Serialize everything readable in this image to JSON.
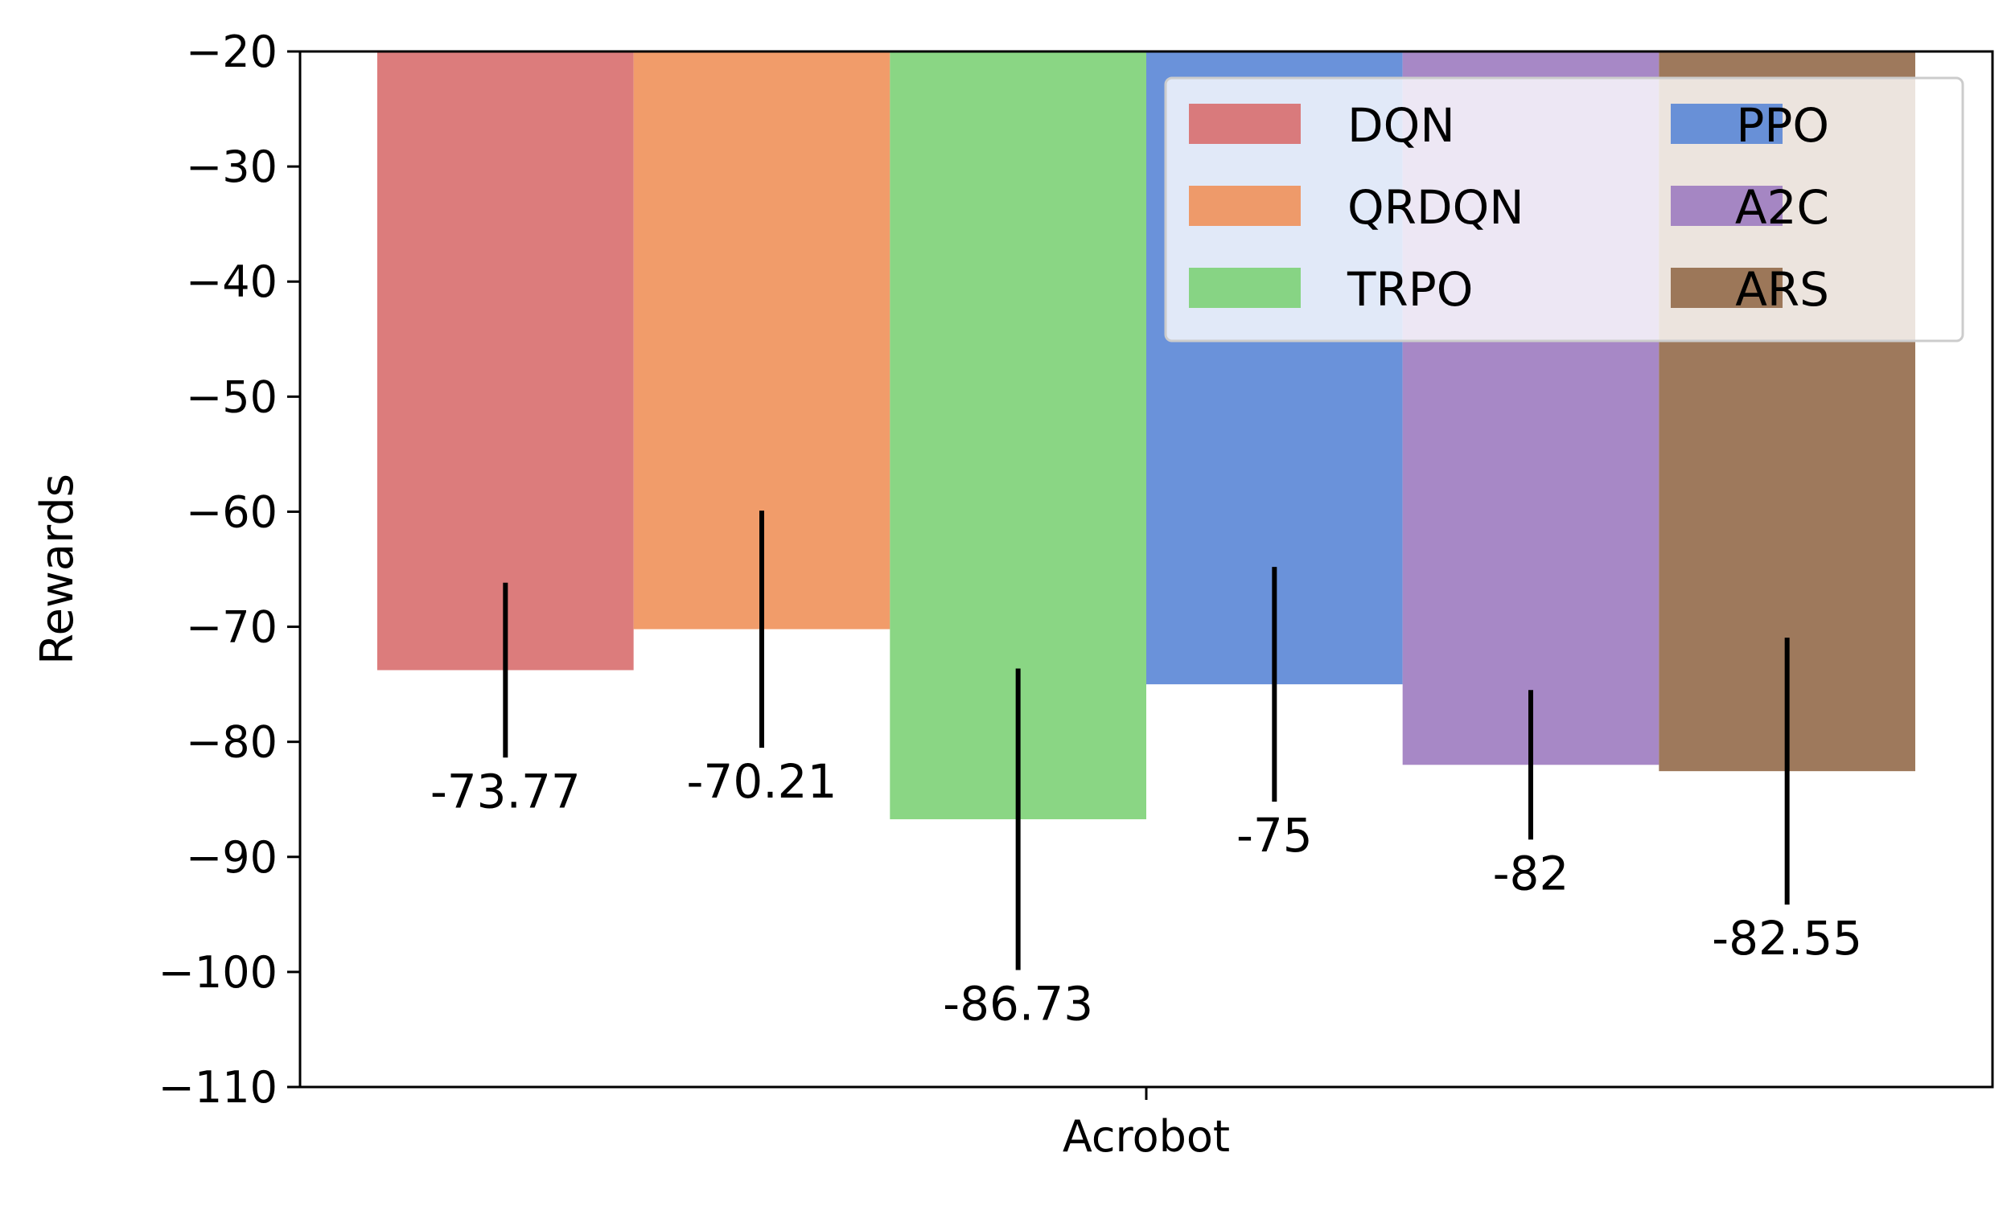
{
  "chart_data": {
    "type": "bar",
    "categories": [
      "Acrobot"
    ],
    "series": [
      {
        "name": "DQN",
        "values": [
          -73.77
        ],
        "error": [
          7.6
        ],
        "label": "-73.77",
        "color": "#d86e6e"
      },
      {
        "name": "QRDQN",
        "values": [
          -70.21
        ],
        "error": [
          10.3
        ],
        "label": "-70.21",
        "color": "#ef915a"
      },
      {
        "name": "TRPO",
        "values": [
          -86.73
        ],
        "error": [
          13.1
        ],
        "label": "-86.73",
        "color": "#7dd277"
      },
      {
        "name": "PPO",
        "values": [
          -75
        ],
        "error": [
          10.2
        ],
        "label": "-75",
        "color": "#5a86d6"
      },
      {
        "name": "A2C",
        "values": [
          -82
        ],
        "error": [
          6.5
        ],
        "label": "-82",
        "color": "#9d7bc0"
      },
      {
        "name": "ARS",
        "values": [
          -82.55
        ],
        "error": [
          11.6
        ],
        "label": "-82.55",
        "color": "#946a4a"
      }
    ],
    "xlabel": "",
    "ylabel": "Rewards",
    "ylim": [
      -110,
      -20
    ],
    "yticks": [
      -20,
      -30,
      -40,
      -50,
      -60,
      -70,
      -80,
      -90,
      -100,
      -110
    ],
    "ytick_labels": [
      "−20",
      "−30",
      "−40",
      "−50",
      "−60",
      "−70",
      "−80",
      "−90",
      "−100",
      "−110"
    ],
    "grid": false,
    "legend": {
      "position": "top-right",
      "columns": 2
    }
  }
}
